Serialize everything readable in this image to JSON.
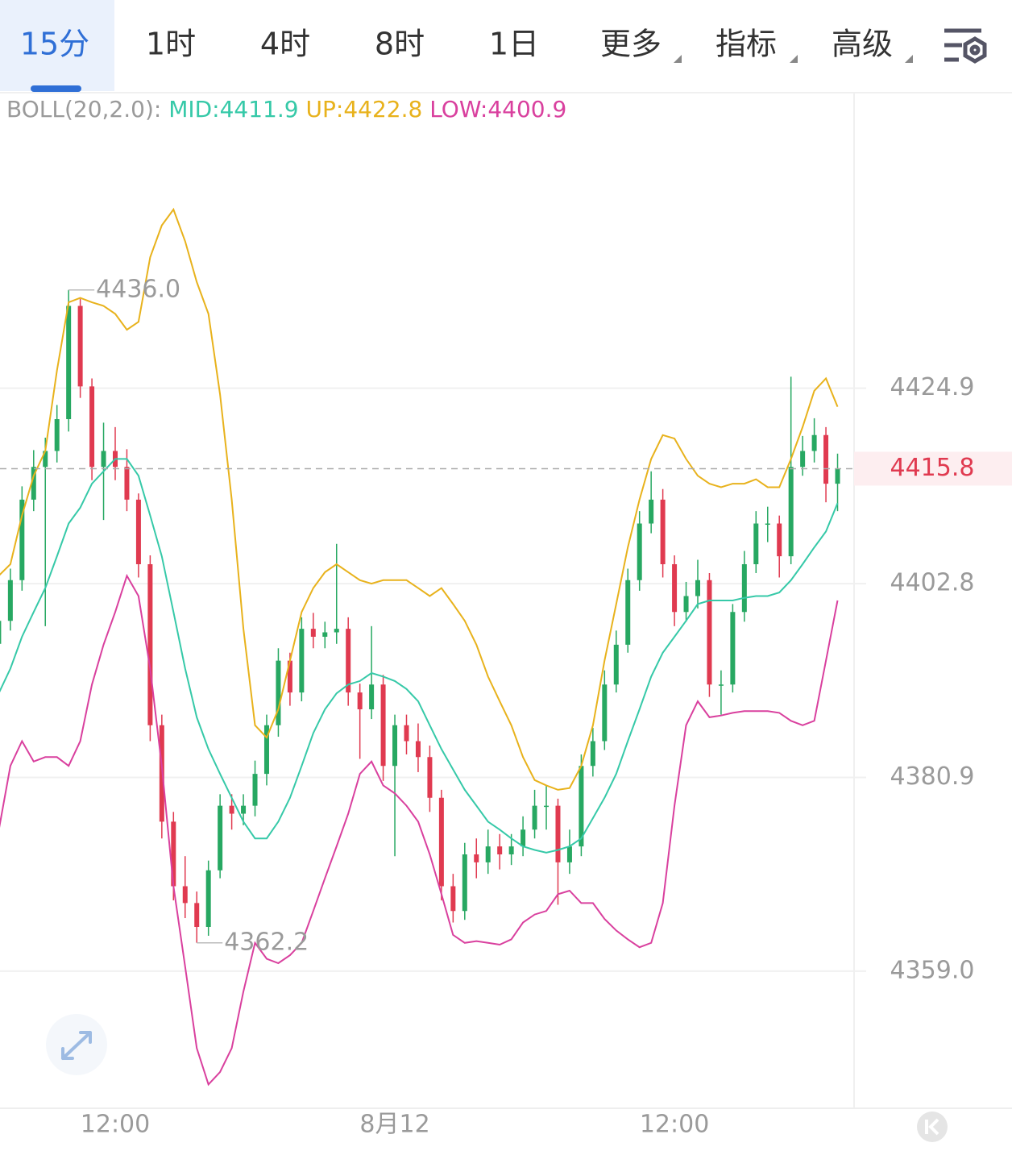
{
  "tabs": [
    "15分",
    "1时",
    "4时",
    "8时",
    "1日",
    "更多",
    "指标",
    "高级"
  ],
  "chart_data": {
    "type": "candlestick",
    "indicator": "BOLL(20,2.0):",
    "categories": [
      null,
      null,
      null,
      null,
      null,
      null,
      null,
      null,
      null,
      null,
      "12:00",
      null,
      null,
      null,
      null,
      null,
      null,
      null,
      null,
      null,
      null,
      null,
      null,
      null,
      null,
      null,
      null,
      null,
      null,
      null,
      null,
      null,
      null,
      null,
      "8月12",
      null,
      null,
      null,
      null,
      null,
      null,
      null,
      null,
      null,
      null,
      null,
      null,
      null,
      null,
      null,
      null,
      null,
      null,
      null,
      null,
      null,
      null,
      null,
      "12:00",
      null,
      null,
      null,
      null,
      null,
      null,
      null,
      null,
      null,
      null,
      null,
      null,
      null,
      null
    ],
    "open": [
      4396.0,
      4398.6,
      4403.2,
      4412.3,
      4416.0,
      4417.8,
      4421.4,
      4434.2,
      4425.1,
      4416.0,
      4417.8,
      4416.0,
      4412.3,
      4405.0,
      4386.8,
      4375.9,
      4368.6,
      4366.7,
      4364.0,
      4370.4,
      4377.7,
      4376.8,
      4377.7,
      4381.3,
      4386.8,
      4394.1,
      4390.5,
      4397.7,
      4396.8,
      4397.3,
      4397.7,
      4390.5,
      4388.6,
      4391.4,
      4382.2,
      4386.8,
      4385.0,
      4383.2,
      4378.6,
      4368.6,
      4365.8,
      4372.2,
      4371.3,
      4373.1,
      4372.2,
      4373.1,
      4375.0,
      4377.7,
      4377.7,
      4371.3,
      4373.1,
      4382.2,
      4385.0,
      4391.4,
      4395.9,
      4403.2,
      4409.6,
      4412.3,
      4405.0,
      4399.6,
      4401.4,
      4403.2,
      4391.4,
      4391.4,
      4399.6,
      4405.0,
      4409.6,
      4409.6,
      4405.9,
      4416.0,
      4417.8,
      4419.6,
      4414.1
    ],
    "high": [
      4400.0,
      4404.5,
      4413.8,
      4417.9,
      4419.3,
      4423.0,
      4436.0,
      4435.0,
      4426.0,
      4421.0,
      4420.5,
      4418.0,
      4413.0,
      4406.0,
      4388.0,
      4377.0,
      4372.0,
      4368.0,
      4371.5,
      4379.0,
      4379.0,
      4379.0,
      4382.8,
      4388.0,
      4395.5,
      4395.0,
      4399.0,
      4399.5,
      4398.5,
      4407.3,
      4399.0,
      4391.5,
      4398.0,
      4392.5,
      4388.0,
      4388.0,
      4387.0,
      4384.5,
      4379.5,
      4370.0,
      4373.5,
      4374.0,
      4375.0,
      4374.5,
      4374.5,
      4376.5,
      4379.5,
      4380.0,
      4378.5,
      4375.0,
      4383.5,
      4386.5,
      4393.0,
      4397.5,
      4404.5,
      4411.0,
      4415.5,
      4413.5,
      4406.0,
      4403.0,
      4405.5,
      4404.0,
      4393.0,
      4400.5,
      4406.5,
      4411.0,
      4411.5,
      4410.5,
      4426.2,
      4419.5,
      4421.5,
      4420.5,
      4417.5
    ],
    "low": [
      4394.8,
      4397.5,
      4402.0,
      4411.0,
      4398.0,
      4416.5,
      4420.0,
      4423.8,
      4414.5,
      4410.0,
      4414.5,
      4411.0,
      4403.5,
      4385.0,
      4374.0,
      4367.0,
      4365.0,
      4362.2,
      4363.0,
      4369.5,
      4375.0,
      4375.5,
      4376.5,
      4380.0,
      4385.5,
      4389.0,
      4389.5,
      4395.5,
      4395.5,
      4396.0,
      4389.0,
      4383.0,
      4387.5,
      4380.5,
      4372.0,
      4383.5,
      4381.5,
      4377.0,
      4367.0,
      4364.5,
      4364.8,
      4369.5,
      4370.0,
      4370.5,
      4371.0,
      4372.0,
      4374.0,
      4375.0,
      4366.5,
      4370.0,
      4372.0,
      4381.0,
      4384.0,
      4390.5,
      4395.0,
      4402.0,
      4408.5,
      4403.5,
      4398.0,
      4398.5,
      4400.0,
      4390.0,
      4388.0,
      4390.5,
      4398.5,
      4404.0,
      4407.5,
      4403.5,
      4405.0,
      4415.0,
      4416.5,
      4412.0,
      4411.0
    ],
    "close": [
      4398.6,
      4403.2,
      4412.3,
      4416.0,
      4417.8,
      4421.4,
      4434.2,
      4425.1,
      4416.0,
      4417.8,
      4416.0,
      4412.3,
      4405.0,
      4386.8,
      4375.9,
      4368.6,
      4366.7,
      4364.0,
      4370.4,
      4377.7,
      4376.8,
      4377.7,
      4381.3,
      4386.8,
      4394.1,
      4390.5,
      4397.7,
      4396.8,
      4397.3,
      4397.7,
      4390.5,
      4388.6,
      4391.4,
      4382.2,
      4386.8,
      4385.0,
      4383.2,
      4378.6,
      4368.6,
      4365.8,
      4372.2,
      4371.3,
      4373.1,
      4372.2,
      4373.1,
      4375.0,
      4377.7,
      4377.7,
      4371.3,
      4373.1,
      4382.2,
      4385.0,
      4391.4,
      4395.9,
      4403.2,
      4409.6,
      4412.3,
      4405.0,
      4399.6,
      4401.4,
      4403.2,
      4391.4,
      4391.4,
      4399.6,
      4405.0,
      4409.6,
      4409.6,
      4405.9,
      4416.0,
      4417.8,
      4419.6,
      4414.1,
      4415.8
    ],
    "up_color": "#27a862",
    "down_color": "#e03a50",
    "bands": [
      {
        "name": "MID:4411.9",
        "color": "#36c9a8",
        "values": [
          4390.4,
          4393.2,
          4396.8,
          4399.6,
          4402.3,
          4405.9,
          4409.6,
          4411.4,
          4414.1,
          4415.5,
          4416.9,
          4416.9,
          4415.0,
          4410.5,
          4405.9,
          4399.6,
          4393.2,
          4387.7,
          4384.1,
          4381.3,
          4378.6,
          4375.9,
          4374.0,
          4374.0,
          4375.9,
          4378.6,
          4382.2,
          4385.9,
          4388.6,
          4390.4,
          4391.4,
          4391.8,
          4392.7,
          4392.3,
          4391.8,
          4390.9,
          4389.5,
          4386.8,
          4384.1,
          4381.8,
          4379.5,
          4377.7,
          4375.9,
          4375.0,
          4374.0,
          4373.1,
          4372.7,
          4372.4,
          4372.7,
          4373.1,
          4374.0,
          4376.3,
          4378.6,
          4381.3,
          4385.0,
          4388.6,
          4392.3,
          4395.0,
          4396.8,
          4398.6,
          4400.5,
          4400.9,
          4400.9,
          4400.9,
          4401.2,
          4401.4,
          4401.4,
          4401.8,
          4403.2,
          4405.0,
          4406.9,
          4408.7,
          4411.9
        ]
      },
      {
        "name": "UP:4422.8",
        "color": "#e8b21c",
        "values": [
          4403.7,
          4405.0,
          4410.5,
          4415.0,
          4417.8,
          4426.9,
          4434.6,
          4435.1,
          4434.6,
          4434.2,
          4433.3,
          4431.5,
          4432.4,
          4439.7,
          4443.3,
          4445.1,
          4441.5,
          4436.9,
          4433.3,
          4424.2,
          4412.3,
          4397.7,
          4386.8,
          4385.4,
          4388.6,
          4394.1,
          4399.6,
          4402.3,
          4404.1,
          4405.0,
          4404.1,
          4403.2,
          4402.8,
          4403.2,
          4403.2,
          4403.2,
          4402.3,
          4401.4,
          4402.3,
          4400.5,
          4398.6,
          4395.9,
          4392.3,
          4389.5,
          4386.8,
          4383.2,
          4380.6,
          4380.0,
          4379.5,
          4379.7,
          4382.2,
          4386.8,
          4394.1,
          4400.5,
          4406.9,
          4412.3,
          4416.9,
          4419.6,
          4419.2,
          4416.9,
          4415.0,
          4414.1,
          4413.7,
          4414.1,
          4414.1,
          4414.6,
          4413.7,
          4413.7,
          4416.9,
          4420.5,
          4424.6,
          4426.0,
          4422.8
        ]
      },
      {
        "name": "LOW:4400.9",
        "color": "#d9409e",
        "values": [
          4374.9,
          4382.2,
          4385.0,
          4382.7,
          4383.2,
          4383.2,
          4382.2,
          4385.0,
          4391.4,
          4395.9,
          4399.6,
          4403.7,
          4401.4,
          4393.2,
          4382.2,
          4368.6,
          4359.5,
          4350.3,
          4346.2,
          4347.6,
          4350.3,
          4356.7,
          4362.2,
          4360.4,
          4359.9,
          4360.8,
          4362.2,
          4365.8,
          4369.5,
          4373.1,
          4376.8,
          4381.3,
          4382.7,
          4380.0,
          4379.1,
          4377.7,
          4375.9,
          4372.2,
          4367.7,
          4363.1,
          4362.2,
          4362.4,
          4362.2,
          4362.0,
          4362.6,
          4364.5,
          4365.4,
          4365.8,
          4367.7,
          4368.1,
          4366.7,
          4366.7,
          4364.9,
          4363.6,
          4362.6,
          4361.7,
          4362.2,
          4366.7,
          4377.7,
          4386.8,
          4389.5,
          4387.7,
          4387.9,
          4388.2,
          4388.4,
          4388.4,
          4388.4,
          4388.2,
          4387.3,
          4386.8,
          4387.3,
          4394.1,
          4400.9
        ]
      }
    ],
    "annotations": [
      "4436.0",
      "4362.2"
    ],
    "last_price": 4415.8,
    "ylim": [
      4343.5,
      4458.3
    ],
    "yticks": [
      4424.9,
      4402.8,
      4380.9,
      {
        "value": 4359,
        "label": "4359.0"
      }
    ],
    "grid": true
  }
}
